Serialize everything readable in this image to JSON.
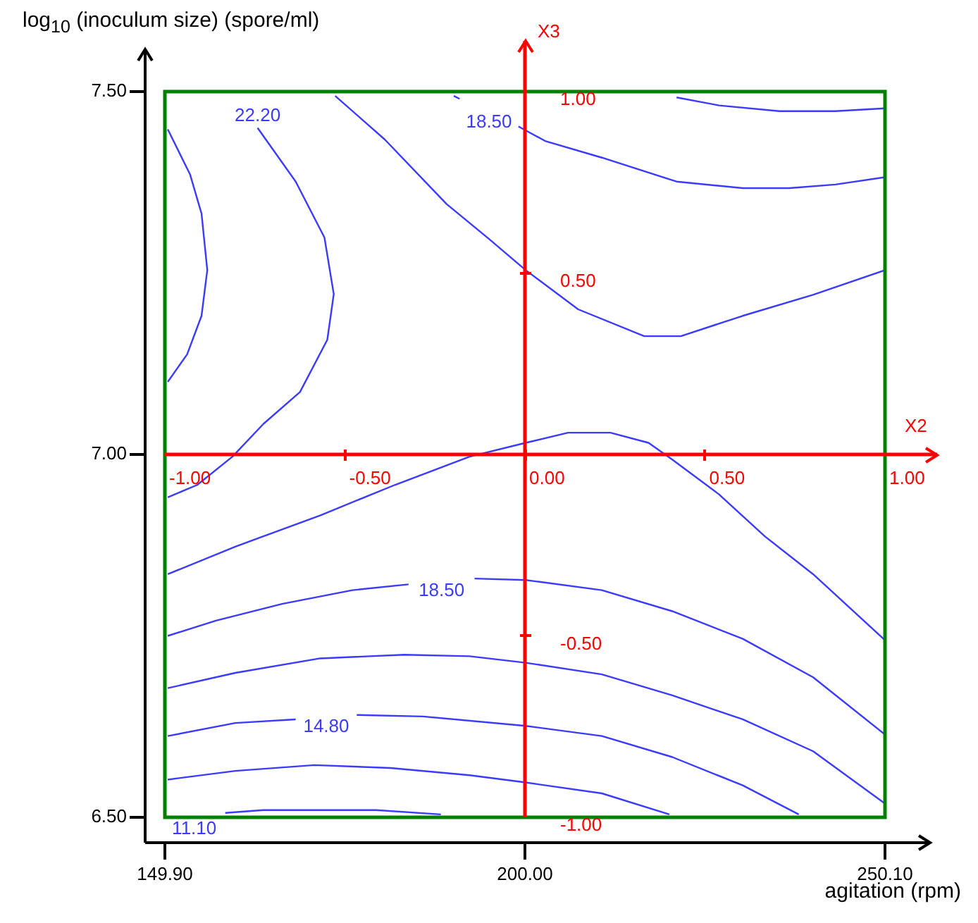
{
  "chart_data": {
    "type": "line",
    "xlabel": "agitation (rpm)",
    "ylabel": "log$_{10}$ (inoculum size) (spore/ml)",
    "xlim": [
      149.9,
      250.1
    ],
    "xticks": [
      {
        "value": 149.9,
        "label": "149.90"
      },
      {
        "value": 200,
        "label": "200.00"
      },
      {
        "value": 250.1,
        "label": "250.10"
      }
    ],
    "ylim": [
      6.5,
      7.5
    ],
    "yticks": [
      {
        "value": 6.5,
        "label": "6.50"
      },
      {
        "value": 7,
        "label": "7.00"
      },
      {
        "value": 7.5,
        "label": "7.50"
      }
    ],
    "legend": false,
    "marker": "none",
    "line_style": "solid",
    "series": [
      {
        "color": "#3b3bff",
        "x": [
          150.3,
          153.4,
          155.0,
          155.8,
          155.0,
          153.0,
          150.3
        ],
        "values": [
          7.448,
          7.386,
          7.332,
          7.254,
          7.191,
          7.138,
          7.1
        ]
      },
      {
        "name": "22.20",
        "color": "#3b3bff",
        "x": [
          162.8,
          168.1,
          172.1,
          173.4,
          172.5,
          168.7,
          163.6,
          159.3,
          154.4,
          150.3
        ],
        "values": [
          7.45,
          7.376,
          7.299,
          7.221,
          7.158,
          7.086,
          7.042,
          6.997,
          6.958,
          6.941
        ]
      },
      {
        "color": "#3b3bff",
        "x": [
          173.6,
          180.5,
          189.1,
          195.0,
          200.1,
          207.4,
          216.6,
          221.7,
          230.3,
          240.1,
          250.1
        ],
        "values": [
          7.494,
          7.434,
          7.345,
          7.297,
          7.254,
          7.2,
          7.163,
          7.163,
          7.191,
          7.22,
          7.254
        ]
      },
      {
        "name": "18.50",
        "color": "#3b3bff",
        "x": [
          190.1,
          190.9,
          195.8,
          199.1,
          202.8,
          210.7,
          221.1,
          230.3,
          236.8,
          243.2,
          250.1
        ],
        "values": [
          7.494,
          7.49,
          null,
          7.452,
          7.432,
          7.409,
          7.376,
          7.367,
          7.367,
          7.372,
          7.382
        ]
      },
      {
        "color": "#3b3bff",
        "x": [
          221.1,
          227.0,
          235.4,
          243.2,
          250.1
        ],
        "values": [
          7.492,
          7.481,
          7.473,
          7.473,
          7.477
        ]
      },
      {
        "color": "#3b3bff",
        "x": [
          150.3,
          159.7,
          171.5,
          181.9,
          192.3,
          200.1,
          206.0,
          211.9,
          217.2,
          220.5,
          227.0,
          233.4,
          240.1,
          250.1
        ],
        "values": [
          6.835,
          6.873,
          6.916,
          6.958,
          6.997,
          7.016,
          7.03,
          7.03,
          7.016,
          6.993,
          6.945,
          6.887,
          6.835,
          6.744
        ]
      },
      {
        "name": "18.50",
        "color": "#3b3bff",
        "x": [
          150.3,
          157.0,
          166.2,
          176.0,
          183.8,
          188.3,
          193.0,
          200.1,
          210.7,
          220.5,
          230.3,
          240.1,
          250.1
        ],
        "values": [
          6.75,
          6.771,
          6.794,
          6.813,
          6.821,
          null,
          6.829,
          6.827,
          6.813,
          6.784,
          6.746,
          6.693,
          6.614
        ]
      },
      {
        "color": "#3b3bff",
        "x": [
          150.3,
          159.7,
          171.5,
          183.2,
          192.3,
          200.1,
          210.7,
          220.5,
          230.3,
          240.1,
          250.1
        ],
        "values": [
          6.678,
          6.699,
          6.719,
          6.724,
          6.722,
          6.713,
          6.697,
          6.668,
          6.635,
          6.591,
          6.519
        ]
      },
      {
        "name": "14.80",
        "color": "#3b3bff",
        "x": [
          150.3,
          159.7,
          168.1,
          172.3,
          176.6,
          185.8,
          200.1,
          210.7,
          220.5,
          230.3,
          238.1
        ],
        "values": [
          6.612,
          6.63,
          6.635,
          null,
          6.641,
          6.639,
          6.626,
          6.612,
          6.583,
          6.544,
          6.504
        ]
      },
      {
        "color": "#3b3bff",
        "x": [
          150.3,
          159.7,
          170.7,
          181.3,
          192.3,
          200.1,
          210.7,
          220.1
        ],
        "values": [
          6.552,
          6.564,
          6.572,
          6.568,
          6.558,
          6.548,
          6.533,
          6.504
        ]
      },
      {
        "name": "11.10",
        "color": "#3b3bff",
        "x": [
          158.3,
          163.6,
          179.3,
          188.3
        ],
        "values": [
          6.506,
          6.51,
          6.51,
          6.504
        ]
      }
    ],
    "ref_lines": [
      {
        "axis": "y",
        "value": 7,
        "label": "X2",
        "color": "#ff0000"
      },
      {
        "axis": "x",
        "value": 200,
        "label": "X3",
        "color": "#ff0000"
      }
    ],
    "annotations": [
      {
        "text": "-1.00",
        "x": 149.9,
        "y": 7
      },
      {
        "text": "-0.50",
        "x": 174.95,
        "y": 7
      },
      {
        "text": "0.00",
        "x": 200,
        "y": 7
      },
      {
        "text": "0.50",
        "x": 225.05,
        "y": 7
      },
      {
        "text": "1.00",
        "x": 250.1,
        "y": 7
      },
      {
        "text": "1.00",
        "x": 200,
        "y": 7.5
      },
      {
        "text": "0.50",
        "x": 200,
        "y": 7.25
      },
      {
        "text": "-0.50",
        "x": 200,
        "y": 6.75
      },
      {
        "text": "-1.00",
        "x": 200,
        "y": 6.5
      }
    ]
  }
}
